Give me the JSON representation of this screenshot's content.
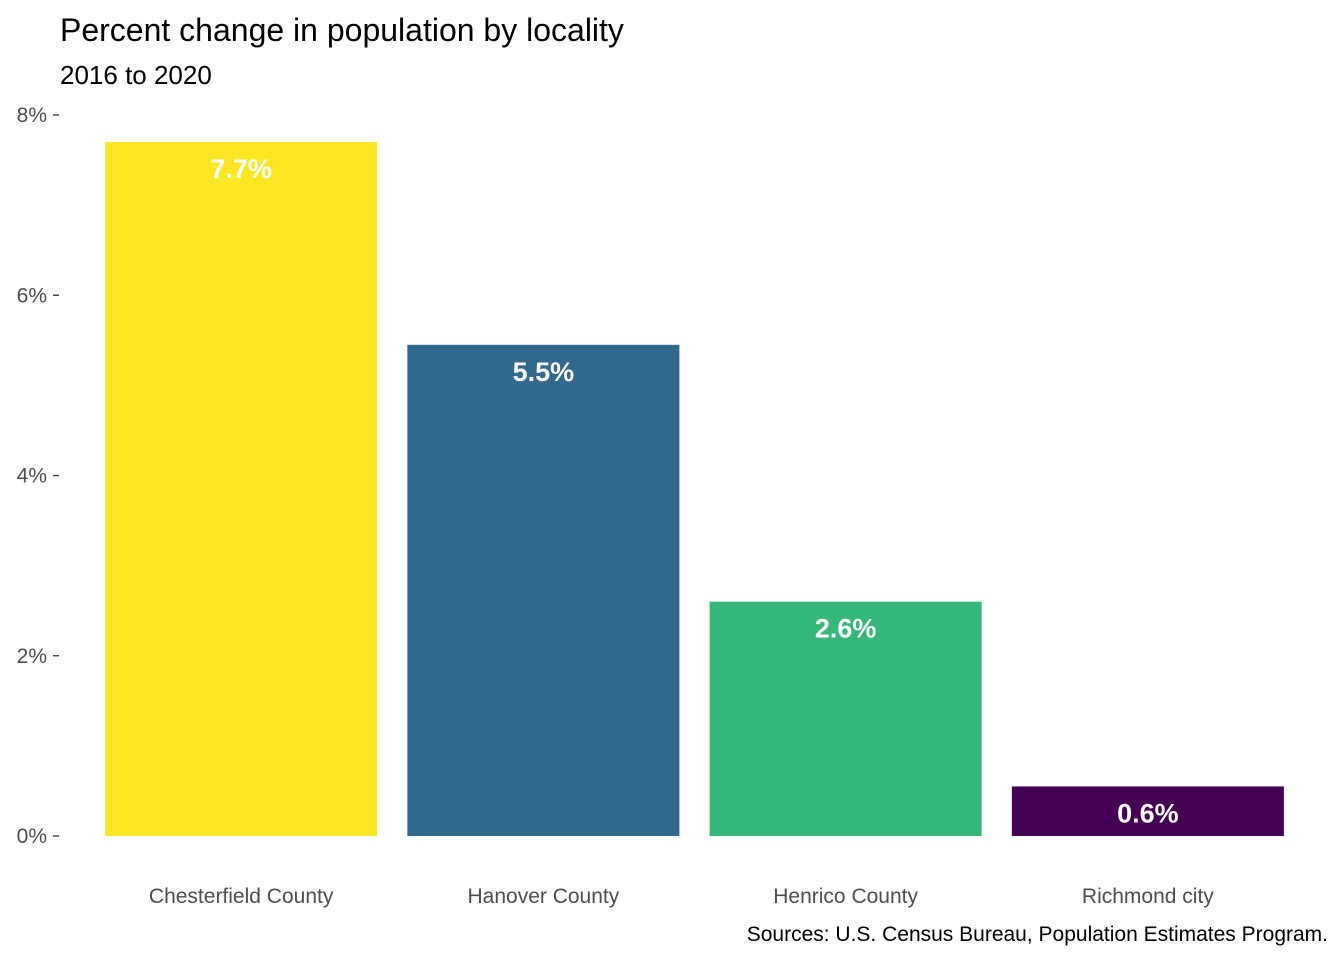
{
  "chart_data": {
    "type": "bar",
    "title": "Percent change in population by locality",
    "subtitle": "2016 to 2020",
    "caption": "Sources: U.S. Census Bureau, Population Estimates Program.",
    "xlabel": "",
    "ylabel": "",
    "categories": [
      "Chesterfield County",
      "Hanover County",
      "Henrico County",
      "Richmond city"
    ],
    "values": [
      7.7,
      5.45,
      2.6,
      0.55
    ],
    "data_labels": [
      "7.7%",
      "5.5%",
      "2.6%",
      "0.6%"
    ],
    "colors": [
      "#FDE725",
      "#31688E",
      "#35B779",
      "#440154"
    ],
    "ylim": [
      0,
      8
    ],
    "yticks": [
      0,
      2,
      4,
      6,
      8
    ],
    "ytick_labels": [
      "0%",
      "2%",
      "4%",
      "6%",
      "8%"
    ],
    "grid": false,
    "legend": "none"
  }
}
